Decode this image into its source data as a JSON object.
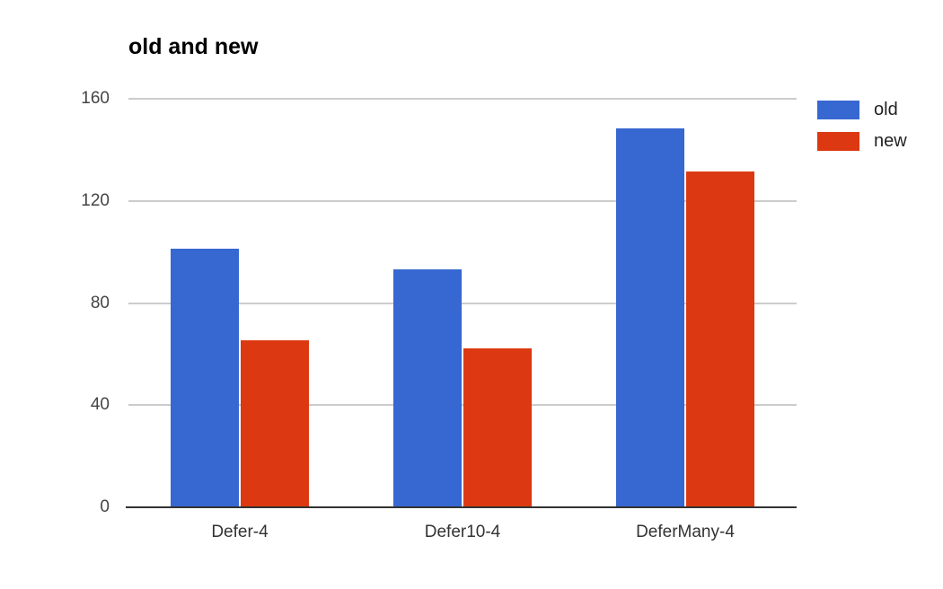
{
  "page": {
    "background": "#ffffff"
  },
  "chart_data": {
    "type": "bar",
    "title": "old and new",
    "categories": [
      "Defer-4",
      "Defer10-4",
      "DeferMany-4"
    ],
    "series": [
      {
        "name": "old",
        "color": "#3767d1",
        "values": [
          101,
          93,
          148
        ]
      },
      {
        "name": "new",
        "color": "#dc3912",
        "values": [
          65,
          62,
          131
        ]
      }
    ],
    "xlabel": "",
    "ylabel": "",
    "yticks": [
      0,
      40,
      80,
      120,
      160
    ],
    "ylim": [
      0,
      160
    ],
    "grid": true,
    "legend_position": "right-top",
    "colors": {
      "grid": "#cccccc",
      "axis": "#333333",
      "tick_text": "#444444",
      "category_text": "#333333",
      "title_text": "#000000",
      "legend_text": "#222222"
    }
  }
}
